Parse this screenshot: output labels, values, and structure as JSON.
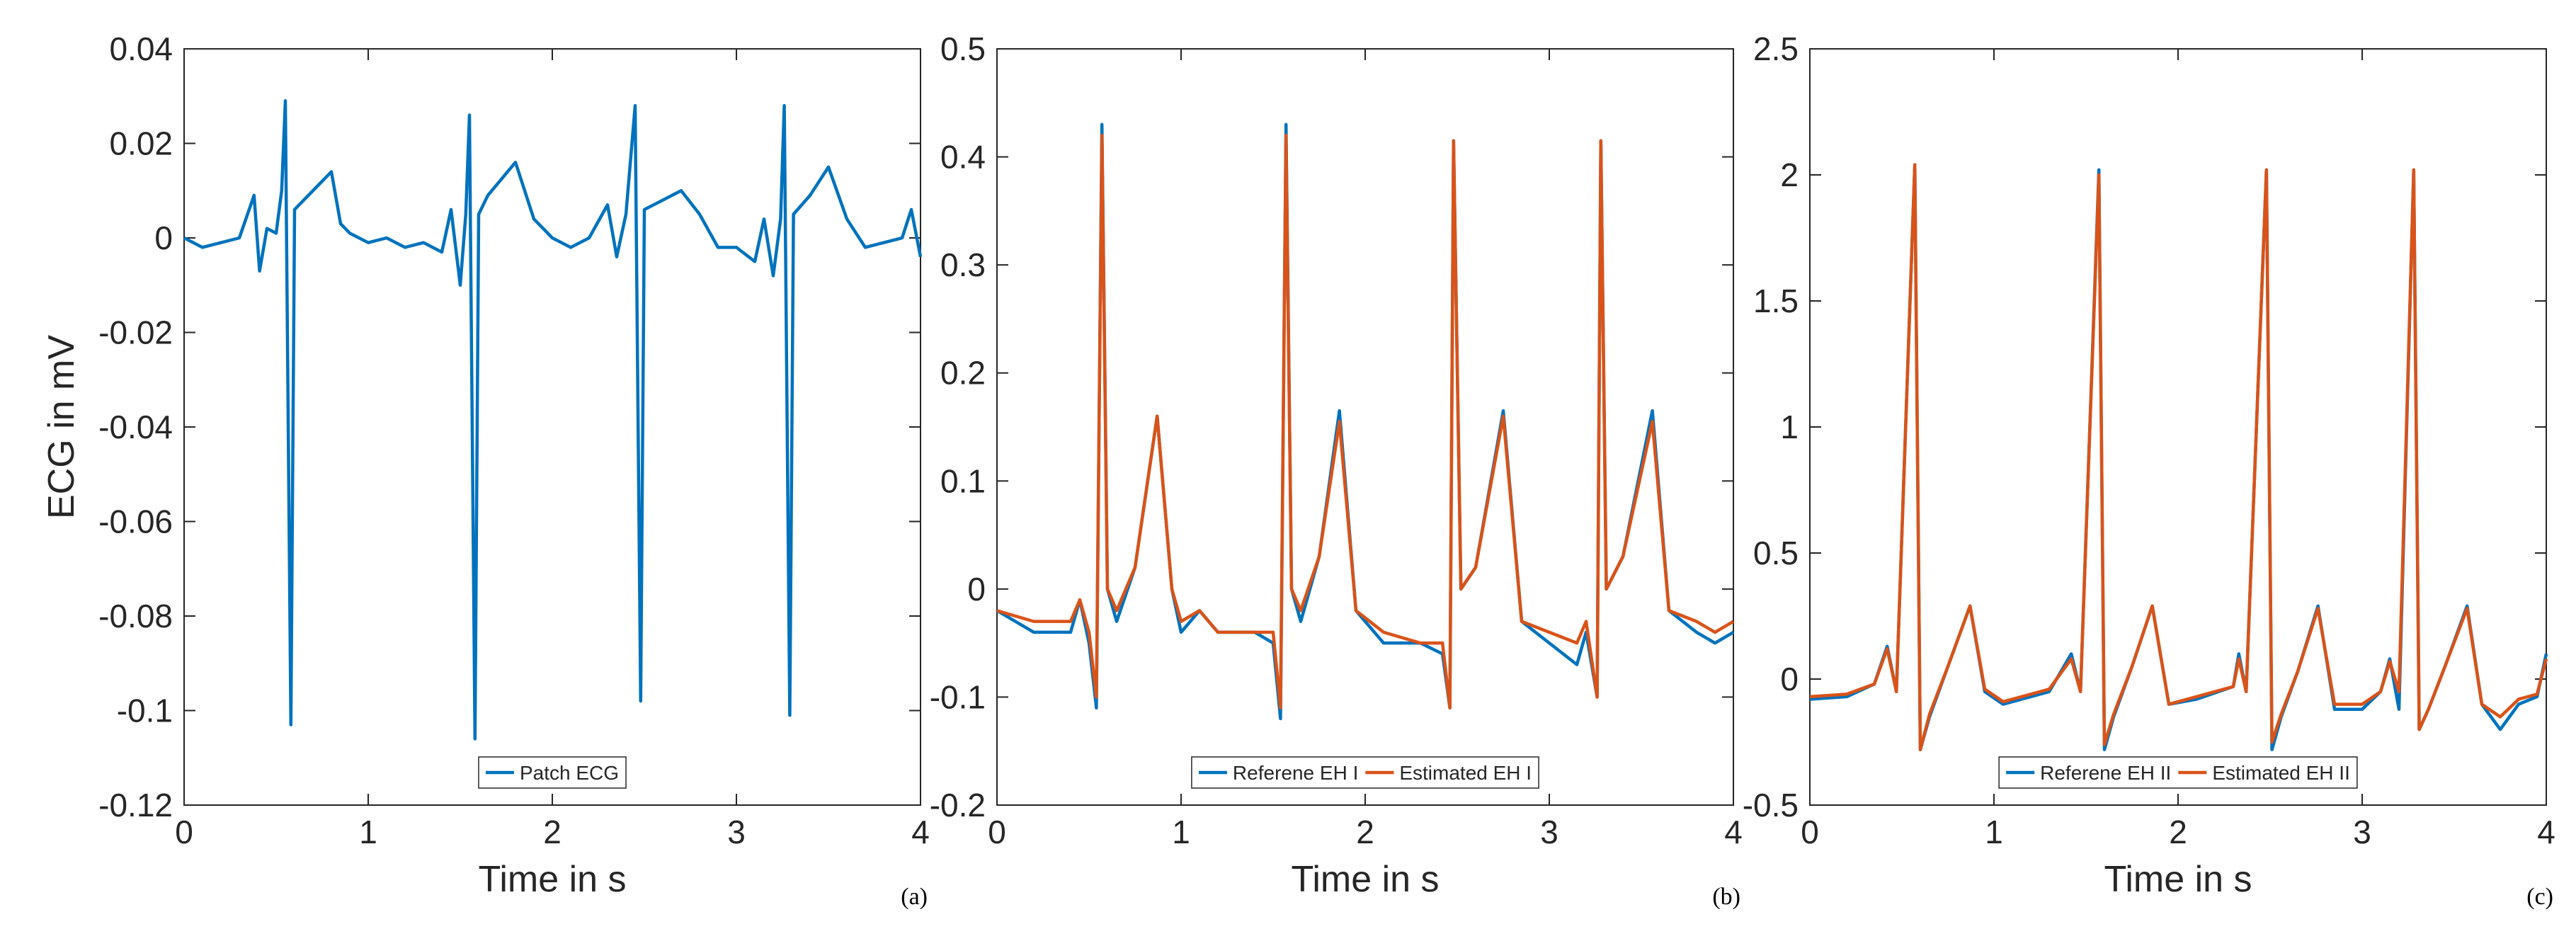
{
  "chart_data": [
    {
      "type": "line",
      "xlabel": "Time in s",
      "ylabel": "ECG in mV",
      "panel_label": "(a)",
      "legend": "south",
      "xlim": [
        0,
        4
      ],
      "ylim": [
        -0.12,
        0.04
      ],
      "xticks": [
        0,
        1,
        2,
        3,
        4
      ],
      "yticks": [
        -0.12,
        -0.1,
        -0.08,
        -0.06,
        -0.04,
        -0.02,
        0,
        0.02,
        0.04
      ],
      "x": [
        0,
        0.1,
        0.2,
        0.3,
        0.38,
        0.41,
        0.45,
        0.5,
        0.53,
        0.55,
        0.58,
        0.6,
        0.65,
        0.7,
        0.8,
        0.85,
        0.9,
        1.0,
        1.1,
        1.2,
        1.3,
        1.4,
        1.45,
        1.5,
        1.53,
        1.55,
        1.58,
        1.6,
        1.65,
        1.8,
        1.9,
        2.0,
        2.1,
        2.2,
        2.3,
        2.35,
        2.4,
        2.45,
        2.48,
        2.5,
        2.6,
        2.7,
        2.8,
        2.9,
        3.0,
        3.1,
        3.15,
        3.2,
        3.24,
        3.26,
        3.29,
        3.31,
        3.4,
        3.5,
        3.6,
        3.7,
        3.8,
        3.9,
        3.95,
        4.0
      ],
      "series": [
        {
          "name": "Patch ECG",
          "color": "#0072BD",
          "values": [
            0,
            -0.002,
            -0.001,
            0,
            0.009,
            -0.007,
            0.002,
            0.001,
            0.01,
            0.029,
            -0.103,
            0.006,
            0.008,
            0.01,
            0.014,
            0.003,
            0.001,
            -0.001,
            0,
            -0.002,
            -0.001,
            -0.003,
            0.006,
            -0.01,
            0.005,
            0.026,
            -0.106,
            0.005,
            0.009,
            0.016,
            0.004,
            0,
            -0.002,
            0,
            0.007,
            -0.004,
            0.005,
            0.028,
            -0.098,
            0.006,
            0.008,
            0.01,
            0.005,
            -0.002,
            -0.002,
            -0.005,
            0.004,
            -0.008,
            0.004,
            0.028,
            -0.101,
            0.005,
            0.009,
            0.015,
            0.004,
            -0.002,
            -0.001,
            0,
            0.006,
            -0.004
          ]
        }
      ]
    },
    {
      "type": "line",
      "xlabel": "Time in s",
      "panel_label": "(b)",
      "legend": "south",
      "xlim": [
        0,
        4
      ],
      "ylim": [
        -0.2,
        0.5
      ],
      "xticks": [
        0,
        1,
        2,
        3,
        4
      ],
      "yticks": [
        -0.2,
        -0.1,
        0,
        0.1,
        0.2,
        0.3,
        0.4,
        0.5
      ],
      "x": [
        0,
        0.2,
        0.4,
        0.45,
        0.5,
        0.54,
        0.57,
        0.6,
        0.65,
        0.75,
        0.87,
        0.95,
        1.0,
        1.1,
        1.2,
        1.4,
        1.5,
        1.54,
        1.57,
        1.6,
        1.65,
        1.75,
        1.86,
        1.95,
        2.1,
        2.3,
        2.42,
        2.46,
        2.48,
        2.52,
        2.6,
        2.75,
        2.85,
        3.0,
        3.15,
        3.2,
        3.26,
        3.28,
        3.31,
        3.4,
        3.56,
        3.65,
        3.8,
        3.9,
        4.0
      ],
      "series": [
        {
          "name": "Referene EH I",
          "color": "#0072BD",
          "values": [
            -0.02,
            -0.04,
            -0.04,
            -0.01,
            -0.05,
            -0.11,
            0.43,
            0.0,
            -0.03,
            0.02,
            0.16,
            0.0,
            -0.04,
            -0.02,
            -0.04,
            -0.04,
            -0.05,
            -0.12,
            0.43,
            0.0,
            -0.03,
            0.03,
            0.165,
            -0.02,
            -0.05,
            -0.05,
            -0.06,
            -0.11,
            0.415,
            0.0,
            0.02,
            0.165,
            -0.03,
            -0.05,
            -0.07,
            -0.04,
            -0.1,
            0.415,
            0.0,
            0.03,
            0.165,
            -0.02,
            -0.04,
            -0.05,
            -0.04
          ]
        },
        {
          "name": "Estimated EH I",
          "color": "#D95319",
          "values": [
            -0.02,
            -0.03,
            -0.03,
            -0.01,
            -0.04,
            -0.1,
            0.42,
            0.0,
            -0.02,
            0.02,
            0.16,
            0.0,
            -0.03,
            -0.02,
            -0.04,
            -0.04,
            -0.04,
            -0.11,
            0.42,
            0.0,
            -0.02,
            0.03,
            0.155,
            -0.02,
            -0.04,
            -0.05,
            -0.05,
            -0.11,
            0.415,
            0.0,
            0.02,
            0.16,
            -0.03,
            -0.04,
            -0.05,
            -0.03,
            -0.1,
            0.415,
            0.0,
            0.03,
            0.155,
            -0.02,
            -0.03,
            -0.04,
            -0.03
          ]
        }
      ]
    },
    {
      "type": "line",
      "xlabel": "Time in s",
      "panel_label": "(c)",
      "legend": "south",
      "xlim": [
        0,
        4
      ],
      "ylim": [
        -0.5,
        2.5
      ],
      "xticks": [
        0,
        1,
        2,
        3,
        4
      ],
      "yticks": [
        -0.5,
        0,
        0.5,
        1,
        1.5,
        2,
        2.5
      ],
      "x": [
        0,
        0.2,
        0.35,
        0.42,
        0.47,
        0.57,
        0.6,
        0.65,
        0.75,
        0.87,
        0.95,
        1.05,
        1.3,
        1.42,
        1.47,
        1.57,
        1.6,
        1.65,
        1.75,
        1.86,
        1.95,
        2.1,
        2.3,
        2.33,
        2.37,
        2.48,
        2.51,
        2.56,
        2.65,
        2.76,
        2.85,
        3.0,
        3.1,
        3.15,
        3.2,
        3.28,
        3.31,
        3.36,
        3.45,
        3.57,
        3.65,
        3.75,
        3.85,
        3.95,
        4.0
      ],
      "series": [
        {
          "name": "Referene EH II",
          "color": "#0072BD",
          "values": [
            -0.08,
            -0.07,
            -0.02,
            0.13,
            -0.05,
            2.04,
            -0.28,
            -0.15,
            0.05,
            0.29,
            -0.05,
            -0.1,
            -0.05,
            0.1,
            -0.05,
            2.02,
            -0.28,
            -0.15,
            0.05,
            0.29,
            -0.1,
            -0.08,
            -0.03,
            0.1,
            -0.05,
            2.02,
            -0.28,
            -0.15,
            0.03,
            0.29,
            -0.12,
            -0.12,
            -0.05,
            0.08,
            -0.12,
            2.02,
            -0.2,
            -0.12,
            0.05,
            0.29,
            -0.1,
            -0.2,
            -0.1,
            -0.07,
            0.1
          ]
        },
        {
          "name": "Estimated EH II",
          "color": "#D95319",
          "values": [
            -0.07,
            -0.06,
            -0.02,
            0.12,
            -0.05,
            2.04,
            -0.28,
            -0.14,
            0.05,
            0.29,
            -0.04,
            -0.09,
            -0.04,
            0.08,
            -0.05,
            2.0,
            -0.26,
            -0.14,
            0.05,
            0.29,
            -0.1,
            -0.07,
            -0.03,
            0.08,
            -0.05,
            2.02,
            -0.25,
            -0.14,
            0.03,
            0.28,
            -0.1,
            -0.1,
            -0.05,
            0.07,
            -0.05,
            2.02,
            -0.2,
            -0.12,
            0.05,
            0.28,
            -0.1,
            -0.15,
            -0.08,
            -0.06,
            0.08
          ]
        }
      ]
    }
  ]
}
